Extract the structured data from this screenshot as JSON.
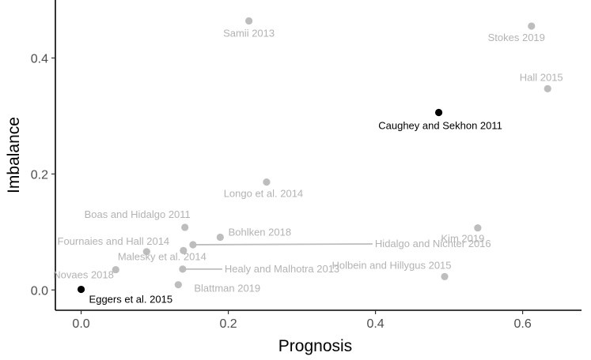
{
  "chart_data": {
    "type": "scatter",
    "title": "",
    "xlabel": "Prognosis",
    "ylabel": "Imbalance",
    "xlim": [
      -0.035,
      0.68
    ],
    "ylim": [
      -0.035,
      0.5
    ],
    "x_ticks": [
      "0.0",
      "0.2",
      "0.4",
      "0.6"
    ],
    "y_ticks": [
      "0.0",
      "0.2",
      "0.4"
    ],
    "grid": false,
    "colors": {
      "highlight": "#000000",
      "muted": "#bdbdbd",
      "muted_label": "#b3b3b3",
      "axis": "#000000"
    },
    "points": [
      {
        "label": "Samii 2013",
        "x": 0.228,
        "y": 0.464,
        "highlight": false
      },
      {
        "label": "Stokes 2019",
        "x": 0.612,
        "y": 0.455,
        "highlight": false
      },
      {
        "label": "Hall 2015",
        "x": 0.634,
        "y": 0.347,
        "highlight": false
      },
      {
        "label": "Caughey and Sekhon 2011",
        "x": 0.486,
        "y": 0.306,
        "highlight": true
      },
      {
        "label": "Longo et al. 2014",
        "x": 0.252,
        "y": 0.186,
        "highlight": false
      },
      {
        "label": "Hidalgo and Nichter 2016",
        "x": 0.152,
        "y": 0.078,
        "highlight": false
      },
      {
        "label": "Boas and Hidalgo 2011",
        "x": 0.141,
        "y": 0.108,
        "highlight": false
      },
      {
        "label": "Bohlken 2018",
        "x": 0.189,
        "y": 0.091,
        "highlight": false
      },
      {
        "label": "Kim 2019",
        "x": 0.539,
        "y": 0.107,
        "highlight": false
      },
      {
        "label": "Fournaies and Hall 2014",
        "x": 0.089,
        "y": 0.066,
        "highlight": false
      },
      {
        "label": "Malesky et al. 2014",
        "x": 0.139,
        "y": 0.068,
        "highlight": false
      },
      {
        "label": "Healy and Malhotra 2013",
        "x": 0.138,
        "y": 0.036,
        "highlight": false
      },
      {
        "label": "Holbein and Hillygus 2015",
        "x": 0.494,
        "y": 0.023,
        "highlight": false
      },
      {
        "label": "Novaes 2018",
        "x": 0.047,
        "y": 0.035,
        "highlight": false
      },
      {
        "label": "Blattman 2019",
        "x": 0.132,
        "y": 0.009,
        "highlight": false
      },
      {
        "label": "Eggers et al. 2015",
        "x": 0.0,
        "y": 0.001,
        "highlight": true
      }
    ]
  }
}
